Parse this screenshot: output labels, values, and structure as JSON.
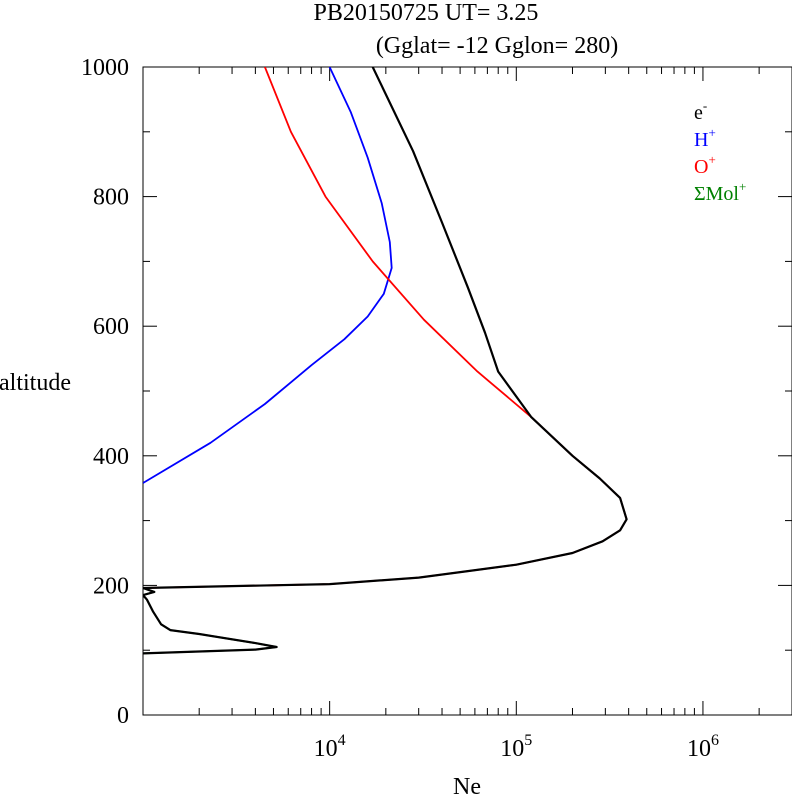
{
  "chart_data": {
    "type": "line",
    "title": "PB20150725   UT=  3.25",
    "subtitle": "(Gglat= -12   Gglon=  280)",
    "xlabel": "Ne",
    "ylabel": "altitude",
    "x_scale": "log",
    "xlim": [
      1000,
      3000000
    ],
    "ylim": [
      0,
      1000
    ],
    "x_ticks": [
      {
        "value": 10000,
        "base": "10",
        "exp": "4"
      },
      {
        "value": 100000,
        "base": "10",
        "exp": "5"
      },
      {
        "value": 1000000,
        "base": "10",
        "exp": "6"
      }
    ],
    "y_ticks": [
      0,
      200,
      400,
      600,
      800,
      1000
    ],
    "y_tick_labels": [
      "0",
      "200",
      "400",
      "600",
      "800",
      "1000"
    ],
    "legend_position": "top-right",
    "series": [
      {
        "name": "e-",
        "legend_base": "e",
        "legend_sup": "-",
        "color": "#000000",
        "points": [
          [
            1000,
            95
          ],
          [
            4000,
            101
          ],
          [
            5200,
            105
          ],
          [
            4000,
            111
          ],
          [
            2000,
            125
          ],
          [
            1400,
            131
          ],
          [
            1250,
            140
          ],
          [
            1130,
            160
          ],
          [
            1050,
            178
          ],
          [
            1000,
            185
          ],
          [
            1150,
            190
          ],
          [
            1000,
            196
          ],
          [
            10000,
            202
          ],
          [
            30000,
            212
          ],
          [
            55000,
            222
          ],
          [
            100000,
            232
          ],
          [
            200000,
            250
          ],
          [
            290000,
            268
          ],
          [
            360000,
            285
          ],
          [
            390000,
            302
          ],
          [
            360000,
            335
          ],
          [
            280000,
            365
          ],
          [
            200000,
            400
          ],
          [
            120000,
            460
          ],
          [
            80000,
            530
          ],
          [
            68000,
            590
          ],
          [
            55000,
            660
          ],
          [
            40000,
            760
          ],
          [
            28000,
            870
          ],
          [
            17000,
            1000
          ]
        ]
      },
      {
        "name": "H+",
        "legend_base": "H",
        "legend_sup": "+",
        "color": "#0000ff",
        "points": [
          [
            1000,
            358
          ],
          [
            2300,
            420
          ],
          [
            4500,
            480
          ],
          [
            8000,
            540
          ],
          [
            12000,
            580
          ],
          [
            16000,
            615
          ],
          [
            19500,
            650
          ],
          [
            21500,
            690
          ],
          [
            21000,
            730
          ],
          [
            19000,
            790
          ],
          [
            16000,
            860
          ],
          [
            13000,
            930
          ],
          [
            10000,
            1000
          ]
        ]
      },
      {
        "name": "O+",
        "legend_base": "O",
        "legend_sup": "+",
        "color": "#ff0000",
        "points": [
          [
            1000,
            196
          ],
          [
            10000,
            202
          ],
          [
            30000,
            212
          ],
          [
            55000,
            222
          ],
          [
            100000,
            232
          ],
          [
            200000,
            250
          ],
          [
            290000,
            268
          ],
          [
            360000,
            285
          ],
          [
            390000,
            302
          ],
          [
            360000,
            335
          ],
          [
            280000,
            365
          ],
          [
            200000,
            400
          ],
          [
            120000,
            460
          ],
          [
            62000,
            530
          ],
          [
            32000,
            610
          ],
          [
            17000,
            700
          ],
          [
            9500,
            800
          ],
          [
            6200,
            900
          ],
          [
            4500,
            1000
          ]
        ]
      },
      {
        "name": "ΣMol+",
        "legend_base": "ΣMol",
        "legend_sup": "+",
        "color": "#008000",
        "points": [
          [
            1000,
            95
          ],
          [
            4000,
            101
          ],
          [
            5200,
            105
          ],
          [
            4000,
            111
          ],
          [
            2000,
            125
          ],
          [
            1400,
            131
          ],
          [
            1250,
            140
          ],
          [
            1130,
            160
          ],
          [
            1050,
            178
          ],
          [
            1000,
            185
          ],
          [
            1150,
            190
          ],
          [
            1000,
            196
          ]
        ]
      }
    ]
  }
}
